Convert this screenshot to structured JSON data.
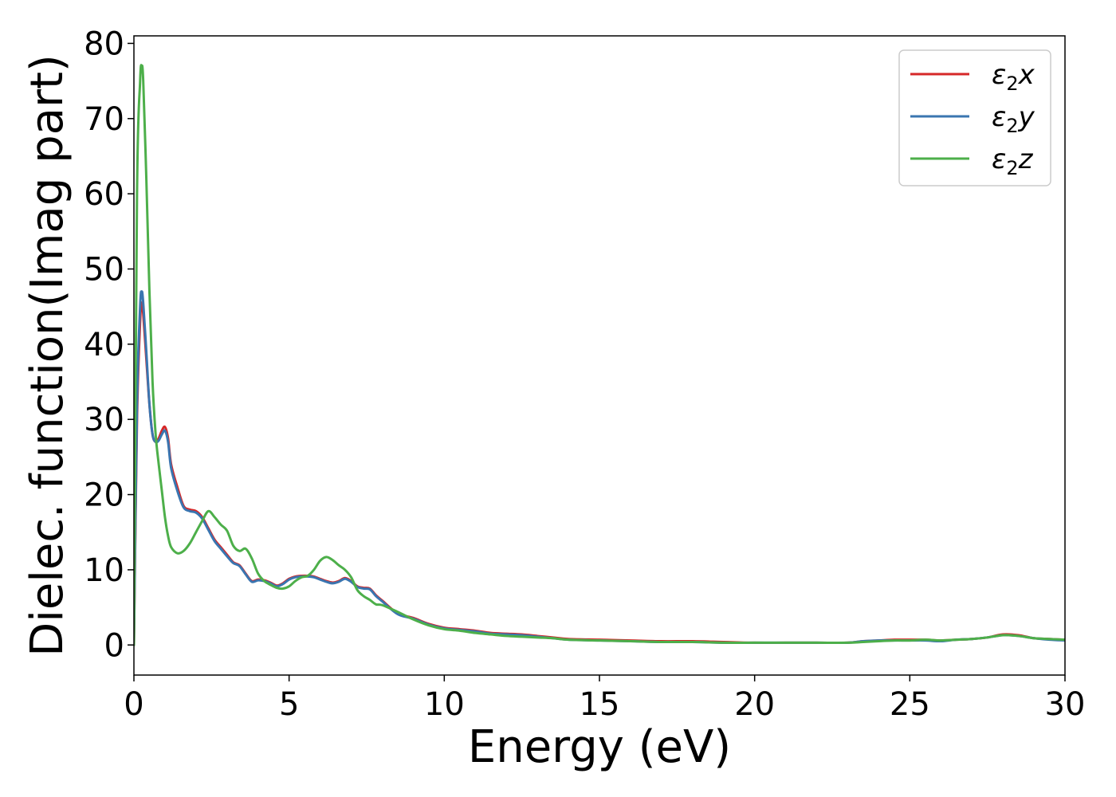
{
  "chart_data": {
    "type": "line",
    "title": "",
    "xlabel": "Energy (eV)",
    "ylabel": "Dielec. function(Imag part)",
    "xlim": [
      0,
      30
    ],
    "ylim": [
      -4,
      81
    ],
    "xticks": [
      0,
      5,
      10,
      15,
      20,
      25,
      30
    ],
    "yticks": [
      0,
      10,
      20,
      30,
      40,
      50,
      60,
      70,
      80
    ],
    "grid": false,
    "legend_position": "top-right",
    "series": [
      {
        "name": "ε₂x",
        "label_base": "ε",
        "label_sub": "2",
        "label_tail": "x",
        "color": "#d62728",
        "x": [
          0,
          0.1,
          0.2,
          0.25,
          0.3,
          0.4,
          0.5,
          0.6,
          0.7,
          0.8,
          0.9,
          1.0,
          1.1,
          1.2,
          1.4,
          1.6,
          1.8,
          2.0,
          2.2,
          2.4,
          2.6,
          2.8,
          3.0,
          3.2,
          3.4,
          3.6,
          3.8,
          4.0,
          4.2,
          4.4,
          4.6,
          4.8,
          5.0,
          5.2,
          5.4,
          5.6,
          5.8,
          6.0,
          6.2,
          6.4,
          6.6,
          6.8,
          7.0,
          7.2,
          7.4,
          7.6,
          7.8,
          8.0,
          8.5,
          9.0,
          9.5,
          10,
          10.5,
          11,
          11.5,
          12,
          12.5,
          13,
          13.5,
          14,
          15,
          16,
          17,
          18,
          19,
          20,
          21,
          22,
          23,
          23.5,
          24,
          24.5,
          25,
          25.5,
          26,
          26.5,
          27,
          27.5,
          28,
          28.5,
          29,
          29.5,
          30
        ],
        "y": [
          0,
          30,
          43,
          45.5,
          44,
          38,
          32,
          28,
          27,
          27.5,
          28.5,
          29,
          27.5,
          24,
          21,
          18.5,
          18,
          17.8,
          17,
          15.5,
          14,
          13,
          12,
          11,
          10.6,
          9.5,
          8.5,
          8.7,
          8.6,
          8.3,
          7.9,
          8.2,
          8.8,
          9.1,
          9.2,
          9.2,
          9.1,
          8.8,
          8.5,
          8.3,
          8.5,
          8.9,
          8.5,
          7.8,
          7.6,
          7.5,
          6.6,
          5.9,
          4.2,
          3.6,
          2.8,
          2.3,
          2.1,
          1.9,
          1.6,
          1.5,
          1.4,
          1.2,
          1.0,
          0.8,
          0.7,
          0.6,
          0.5,
          0.5,
          0.4,
          0.3,
          0.3,
          0.3,
          0.3,
          0.5,
          0.6,
          0.7,
          0.7,
          0.7,
          0.6,
          0.7,
          0.8,
          1.0,
          1.4,
          1.3,
          0.9,
          0.8,
          0.7
        ]
      },
      {
        "name": "ε₂y",
        "label_base": "ε",
        "label_sub": "2",
        "label_tail": "y",
        "color": "#3a75b0",
        "x": [
          0,
          0.1,
          0.2,
          0.25,
          0.3,
          0.4,
          0.5,
          0.6,
          0.7,
          0.8,
          0.9,
          1.0,
          1.1,
          1.2,
          1.4,
          1.6,
          1.8,
          2.0,
          2.2,
          2.4,
          2.6,
          2.8,
          3.0,
          3.2,
          3.4,
          3.6,
          3.8,
          4.0,
          4.2,
          4.4,
          4.6,
          4.8,
          5.0,
          5.2,
          5.4,
          5.6,
          5.8,
          6.0,
          6.2,
          6.4,
          6.6,
          6.8,
          7.0,
          7.2,
          7.4,
          7.6,
          7.8,
          8.0,
          8.5,
          9.0,
          9.5,
          10,
          10.5,
          11,
          11.5,
          12,
          12.5,
          13,
          13.5,
          14,
          15,
          16,
          17,
          18,
          19,
          20,
          21,
          22,
          23,
          23.5,
          24,
          24.5,
          25,
          25.5,
          26,
          26.5,
          27,
          27.5,
          28,
          28.5,
          29,
          29.5,
          30
        ],
        "y": [
          0,
          32,
          45,
          47,
          45.5,
          39,
          32,
          28,
          27,
          27.2,
          28,
          28.5,
          27,
          23.5,
          20.5,
          18.3,
          17.8,
          17.6,
          16.8,
          15.3,
          13.8,
          12.8,
          11.8,
          10.9,
          10.5,
          9.4,
          8.4,
          8.6,
          8.5,
          8.2,
          7.8,
          8.1,
          8.7,
          9.0,
          9.1,
          9.1,
          9.0,
          8.7,
          8.4,
          8.2,
          8.4,
          8.8,
          8.4,
          7.7,
          7.5,
          7.4,
          6.5,
          5.8,
          4.1,
          3.5,
          2.7,
          2.2,
          2.0,
          1.8,
          1.5,
          1.4,
          1.3,
          1.1,
          0.9,
          0.7,
          0.6,
          0.5,
          0.4,
          0.4,
          0.3,
          0.3,
          0.3,
          0.3,
          0.3,
          0.5,
          0.6,
          0.6,
          0.6,
          0.6,
          0.5,
          0.7,
          0.8,
          1.0,
          1.3,
          1.2,
          0.9,
          0.7,
          0.6
        ]
      },
      {
        "name": "ε₂z",
        "label_base": "ε",
        "label_sub": "2",
        "label_tail": "z",
        "color": "#4daf4a",
        "x": [
          0,
          0.1,
          0.2,
          0.25,
          0.3,
          0.4,
          0.5,
          0.6,
          0.7,
          0.8,
          0.9,
          1.0,
          1.1,
          1.2,
          1.4,
          1.6,
          1.8,
          2.0,
          2.2,
          2.4,
          2.6,
          2.8,
          3.0,
          3.2,
          3.4,
          3.6,
          3.8,
          4.0,
          4.2,
          4.4,
          4.6,
          4.8,
          5.0,
          5.2,
          5.4,
          5.6,
          5.8,
          6.0,
          6.2,
          6.4,
          6.6,
          6.8,
          7.0,
          7.2,
          7.4,
          7.6,
          7.8,
          8.0,
          8.5,
          9.0,
          9.5,
          10,
          10.5,
          11,
          11.5,
          12,
          12.5,
          13,
          13.5,
          14,
          15,
          16,
          17,
          18,
          19,
          20,
          21,
          22,
          23,
          23.5,
          24,
          24.5,
          25,
          25.5,
          26,
          26.5,
          27,
          27.5,
          28,
          28.5,
          29,
          29.5,
          30
        ],
        "y": [
          0,
          60,
          75,
          77,
          75,
          62,
          47,
          35,
          28,
          24,
          20.5,
          17,
          14.5,
          13,
          12.2,
          12.5,
          13.5,
          15,
          16.5,
          17.8,
          17,
          16,
          15.2,
          13.2,
          12.5,
          12.8,
          11.5,
          9.5,
          8.5,
          8.0,
          7.6,
          7.5,
          7.8,
          8.5,
          9.0,
          9.2,
          10.0,
          11.2,
          11.7,
          11.3,
          10.6,
          10.0,
          9.0,
          7.3,
          6.5,
          6.0,
          5.4,
          5.3,
          4.4,
          3.4,
          2.6,
          2.1,
          1.9,
          1.6,
          1.4,
          1.2,
          1.1,
          1.0,
          0.9,
          0.7,
          0.6,
          0.5,
          0.4,
          0.4,
          0.3,
          0.3,
          0.3,
          0.3,
          0.3,
          0.4,
          0.5,
          0.6,
          0.6,
          0.7,
          0.6,
          0.7,
          0.8,
          1.0,
          1.3,
          1.2,
          0.9,
          0.8,
          0.7
        ]
      }
    ]
  }
}
